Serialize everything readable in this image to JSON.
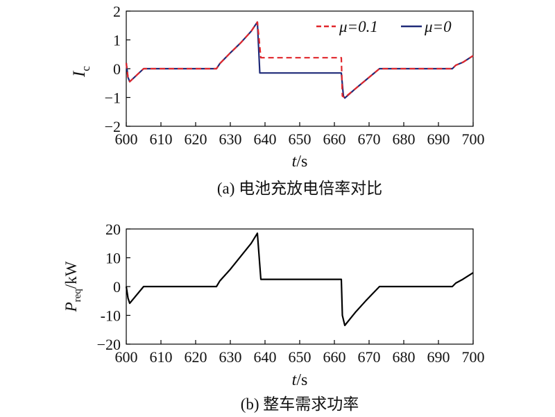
{
  "chart_data": [
    {
      "type": "line",
      "caption": "(a) 电池充放电倍率对比",
      "xlabel": "t/s",
      "ylabel": "I_c",
      "xlim": [
        600,
        700
      ],
      "ylim": [
        -2,
        2
      ],
      "xticks": [
        "600",
        "610",
        "620",
        "630",
        "640",
        "650",
        "660",
        "670",
        "680",
        "690",
        "700"
      ],
      "yticks": [
        "2",
        "1",
        "0",
        "−1",
        "−2"
      ],
      "legend_position": "top-right",
      "series": [
        {
          "name": "μ=0.1",
          "color": "#e0262b",
          "style": "dashed",
          "x": [
            600,
            600.5,
            601,
            605,
            626,
            627,
            630,
            633,
            636,
            637.8,
            638.8,
            639.5,
            650,
            662,
            662.3,
            663,
            666,
            669,
            673,
            694,
            695,
            697,
            700
          ],
          "y": [
            0.2,
            -0.3,
            -0.45,
            0.0,
            0.0,
            0.18,
            0.55,
            0.9,
            1.3,
            1.62,
            0.38,
            0.38,
            0.38,
            0.38,
            -0.95,
            -1.0,
            -0.7,
            -0.4,
            0.0,
            0.0,
            0.12,
            0.22,
            0.45
          ]
        },
        {
          "name": "μ=0",
          "color": "#1f2a78",
          "style": "solid",
          "x": [
            600,
            600.5,
            601,
            605,
            626,
            627,
            630,
            633,
            636,
            637.8,
            638.5,
            650,
            662,
            662.6,
            663,
            666,
            669,
            673,
            694,
            695,
            697,
            700
          ],
          "y": [
            0.2,
            -0.3,
            -0.45,
            0.0,
            0.0,
            0.18,
            0.55,
            0.9,
            1.3,
            1.62,
            -0.15,
            -0.15,
            -0.15,
            -0.95,
            -1.02,
            -0.7,
            -0.4,
            0.0,
            0.0,
            0.12,
            0.22,
            0.45
          ]
        }
      ]
    },
    {
      "type": "line",
      "caption": "(b) 整车需求功率",
      "xlabel": "t/s",
      "ylabel": "P_req/kW",
      "xlim": [
        600,
        700
      ],
      "ylim": [
        -20,
        20
      ],
      "xticks": [
        "600",
        "610",
        "620",
        "630",
        "640",
        "650",
        "660",
        "670",
        "680",
        "690",
        "700"
      ],
      "yticks": [
        "20",
        "10",
        "0",
        "-10",
        "−20"
      ],
      "series": [
        {
          "color": "#000000",
          "style": "solid",
          "x": [
            600,
            600.5,
            601,
            605,
            626,
            627,
            630,
            633,
            636,
            637.8,
            638.8,
            650,
            662,
            662.3,
            663,
            666,
            669,
            673,
            694,
            695,
            697,
            700
          ],
          "y": [
            0.0,
            -4.0,
            -5.8,
            0.0,
            0.0,
            2.0,
            6.0,
            10.5,
            15.0,
            18.5,
            2.5,
            2.5,
            2.5,
            -10.0,
            -13.5,
            -9.0,
            -5.0,
            0.0,
            0.0,
            1.2,
            2.5,
            4.8
          ]
        }
      ]
    }
  ]
}
